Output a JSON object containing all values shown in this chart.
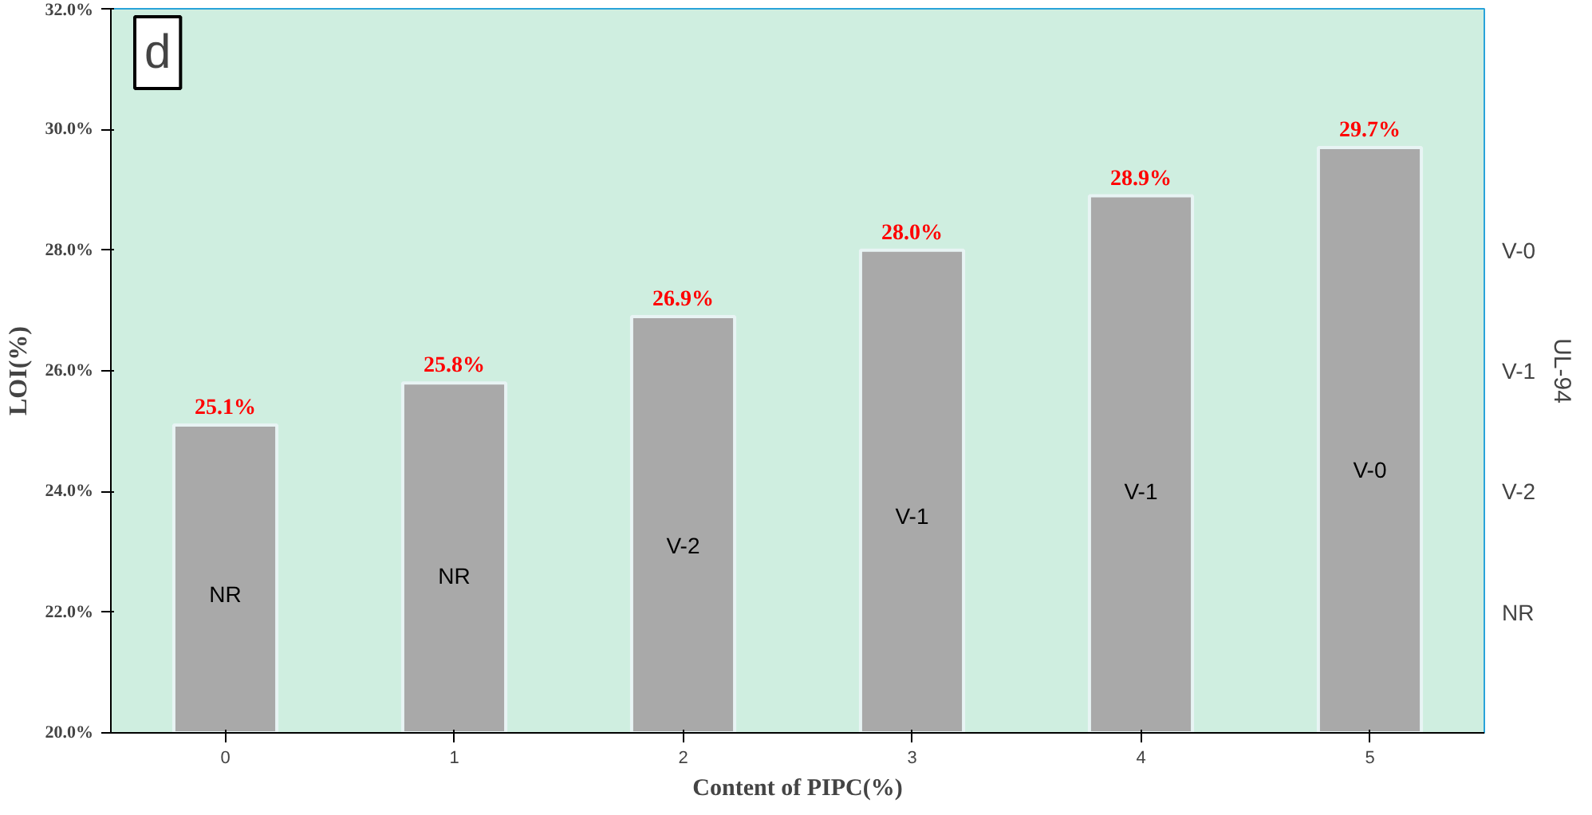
{
  "chart_data": {
    "type": "bar",
    "xlabel": "Content of PIPC(%)",
    "ylabel": "LOI(%)",
    "y2label": "UL-94",
    "categories": [
      "0",
      "1",
      "2",
      "3",
      "4",
      "5"
    ],
    "values": [
      25.1,
      25.8,
      26.9,
      28.0,
      28.9,
      29.7
    ],
    "value_labels": [
      "25.1%",
      "25.8%",
      "26.9%",
      "28.0%",
      "28.9%",
      "29.7%"
    ],
    "color": "#a9a9a9",
    "ylim": [
      20,
      32
    ],
    "yticks": [
      {
        "value": 20,
        "label": "20.0%"
      },
      {
        "value": 22,
        "label": "22.0%"
      },
      {
        "value": 24,
        "label": "24.0%"
      },
      {
        "value": 26,
        "label": "26.0%"
      },
      {
        "value": 28,
        "label": "28.0%"
      },
      {
        "value": 30,
        "label": "30.0%"
      },
      {
        "value": 32,
        "label": "32.0%"
      }
    ],
    "annotations": [
      "d",
      "NR",
      "NR",
      "V-2",
      "V-1",
      "V-1",
      "V-0",
      "NR",
      "V-2",
      "V-1",
      "V-0"
    ]
  }
}
